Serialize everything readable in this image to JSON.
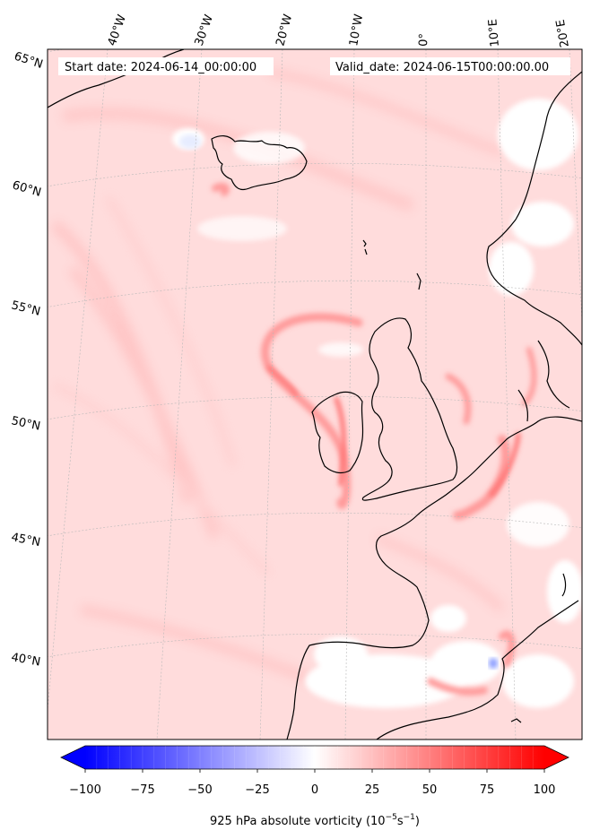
{
  "header": {
    "start_date": "Start date: 2024-06-14_00:00:00",
    "valid_date": "Valid_date: 2024-06-15T00:00:00.00"
  },
  "lon_labels": [
    "40°W",
    "30°W",
    "20°W",
    "10°W",
    "0°",
    "10°E",
    "20°E"
  ],
  "lat_labels": [
    "65°N",
    "60°N",
    "55°N",
    "50°N",
    "45°N",
    "40°N"
  ],
  "colorbar": {
    "ticks": [
      "−100",
      "−75",
      "−50",
      "−25",
      "0",
      "25",
      "50",
      "75",
      "100"
    ],
    "label": "925 hPa absolute vorticity (10",
    "label_exp1": "−5",
    "label_mid": "s",
    "label_exp2": "−1",
    "label_end": ")",
    "range": [
      -100,
      100
    ],
    "levels": 40,
    "cmap": "bwr",
    "extend": "both"
  },
  "colors": {
    "neg_max": "#0000ff",
    "zero": "#ffffff",
    "pos_max": "#ff0000",
    "field_base": "#ffdada",
    "coast": "#000000"
  }
}
